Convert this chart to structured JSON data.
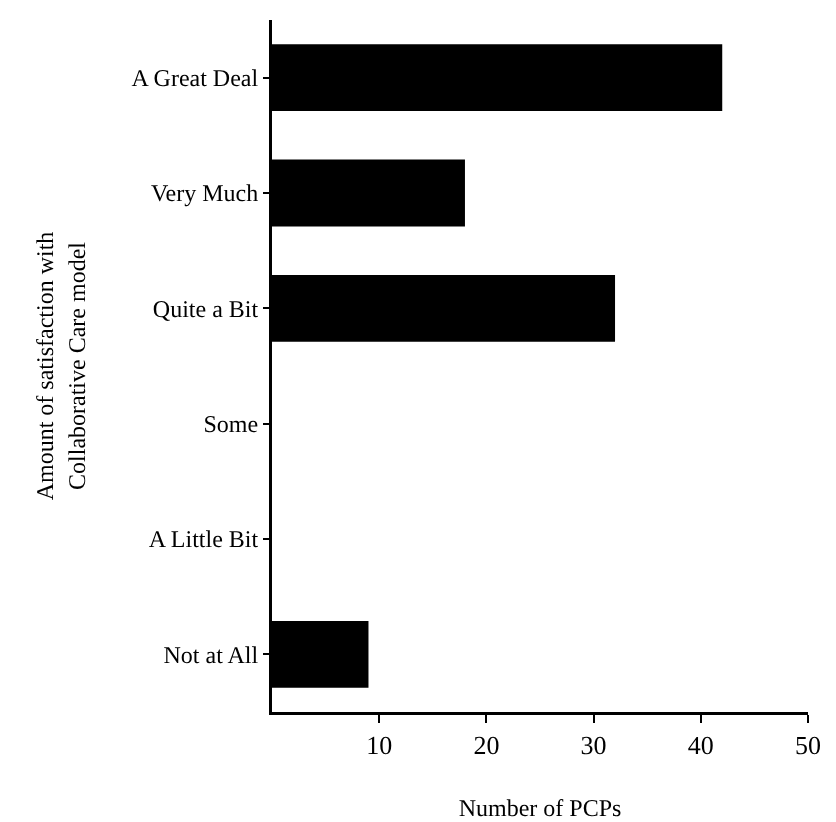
{
  "chart_data": {
    "type": "bar",
    "orientation": "horizontal",
    "categories": [
      "A Great Deal",
      "Very Much",
      "Quite a Bit",
      "Some",
      "A Little Bit",
      "Not at All"
    ],
    "values": [
      42,
      18,
      32,
      0,
      0,
      9
    ],
    "color": "#000000",
    "xlim": [
      0,
      50
    ],
    "xticks": [
      10,
      20,
      30,
      40,
      50
    ],
    "xlabel": "Number of PCPs",
    "ylabel": "Amount of satisfaction with\nCollaborative Care model"
  }
}
